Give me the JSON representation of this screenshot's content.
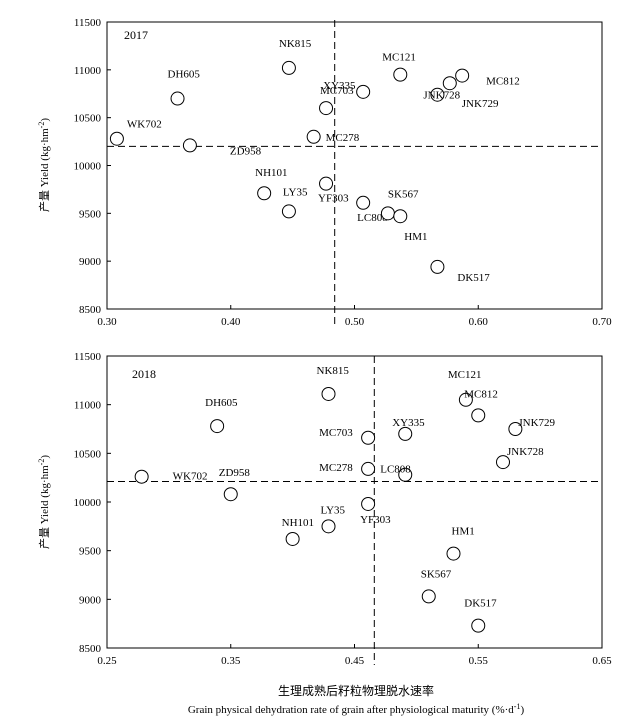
{
  "xlabel_cn": "生理成熟后籽粒物理脱水速率",
  "xlabel_en": "Grain physical dehydration rate of grain after physiological maturity (%·d",
  "xlabel_sup": "-1",
  "xlabel_close": ")",
  "ylabel_cn": "产量",
  "ylabel_en": "Yield (kg·hm",
  "ylabel_sup": "-2",
  "ylabel_close": ")",
  "chart_data": [
    {
      "type": "scatter",
      "title": "2017",
      "xlim": [
        0.3,
        0.7
      ],
      "ylim": [
        8500,
        11500
      ],
      "xticks": [
        "0.30",
        "0.40",
        "0.50",
        "0.60",
        "0.70"
      ],
      "yticks": [
        "8500",
        "9000",
        "9500",
        "10000",
        "10500",
        "11000",
        "11500"
      ],
      "mean_x": 0.484,
      "mean_y": 10200,
      "points": [
        {
          "name": "WK702",
          "x": 0.308,
          "y": 10280
        },
        {
          "name": "DH605",
          "x": 0.357,
          "y": 10700
        },
        {
          "name": "ZD958",
          "x": 0.367,
          "y": 10210
        },
        {
          "name": "NK815",
          "x": 0.447,
          "y": 11020
        },
        {
          "name": "NH101",
          "x": 0.427,
          "y": 9710
        },
        {
          "name": "LY35",
          "x": 0.447,
          "y": 9520
        },
        {
          "name": "MC278",
          "x": 0.467,
          "y": 10300
        },
        {
          "name": "YF303",
          "x": 0.477,
          "y": 9810
        },
        {
          "name": "MC703",
          "x": 0.477,
          "y": 10600
        },
        {
          "name": "XY335",
          "x": 0.507,
          "y": 10770
        },
        {
          "name": "LC808",
          "x": 0.507,
          "y": 9610
        },
        {
          "name": "SK567",
          "x": 0.527,
          "y": 9500
        },
        {
          "name": "HM1",
          "x": 0.537,
          "y": 9470
        },
        {
          "name": "MC121",
          "x": 0.537,
          "y": 10950
        },
        {
          "name": "DK517",
          "x": 0.567,
          "y": 8940
        },
        {
          "name": "JNK728",
          "x": 0.567,
          "y": 10740
        },
        {
          "name": "JNK729",
          "x": 0.577,
          "y": 10860
        },
        {
          "name": "MC812",
          "x": 0.587,
          "y": 10940
        }
      ]
    },
    {
      "type": "scatter",
      "title": "2018",
      "xlim": [
        0.25,
        0.65
      ],
      "ylim": [
        8500,
        11500
      ],
      "xticks": [
        "0.25",
        "0.35",
        "0.45",
        "0.55",
        "0.65"
      ],
      "yticks": [
        "8500",
        "9000",
        "9500",
        "10000",
        "10500",
        "11000",
        "11500"
      ],
      "mean_x": 0.466,
      "mean_y": 10210,
      "points": [
        {
          "name": "WK702",
          "x": 0.278,
          "y": 10260
        },
        {
          "name": "ZD958",
          "x": 0.35,
          "y": 10080
        },
        {
          "name": "DH605",
          "x": 0.339,
          "y": 10780
        },
        {
          "name": "NK815",
          "x": 0.429,
          "y": 11110
        },
        {
          "name": "NH101",
          "x": 0.4,
          "y": 9620
        },
        {
          "name": "LY35",
          "x": 0.429,
          "y": 9750
        },
        {
          "name": "YF303",
          "x": 0.461,
          "y": 9980
        },
        {
          "name": "MC278",
          "x": 0.461,
          "y": 10340
        },
        {
          "name": "MC703",
          "x": 0.461,
          "y": 10660
        },
        {
          "name": "XY335",
          "x": 0.491,
          "y": 10700
        },
        {
          "name": "LC808",
          "x": 0.491,
          "y": 10280
        },
        {
          "name": "SK567",
          "x": 0.51,
          "y": 9030
        },
        {
          "name": "HM1",
          "x": 0.53,
          "y": 9470
        },
        {
          "name": "DK517",
          "x": 0.55,
          "y": 8730
        },
        {
          "name": "MC121",
          "x": 0.54,
          "y": 11050
        },
        {
          "name": "MC812",
          "x": 0.55,
          "y": 10890
        },
        {
          "name": "JNK729",
          "x": 0.58,
          "y": 10750
        },
        {
          "name": "JNK728",
          "x": 0.57,
          "y": 10410
        }
      ]
    }
  ]
}
